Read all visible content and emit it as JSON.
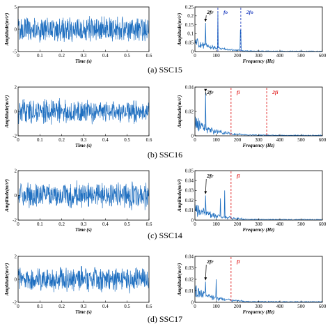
{
  "chart_data": [
    {
      "type": "line",
      "caption": "(a) SSC15",
      "time_panel": {
        "xlabel": "Time (s)",
        "ylabel": "Amplitude(m/s²)",
        "xlim": [
          0,
          0.65
        ],
        "ylim": [
          -5,
          5
        ],
        "xticks": [
          "0",
          "0.1",
          "0.2",
          "0.3",
          "0.4",
          "0.5",
          "0.6"
        ],
        "yticks": [
          "5",
          "0",
          "-5"
        ],
        "series": [
          {
            "color": "#1f6fc0",
            "amplitude": 3.2,
            "profile": "uniform"
          }
        ]
      },
      "spectrum_panel": {
        "xlabel": "Frequency (Hz)",
        "ylabel": "Amplitude(m/s²)",
        "xlim": [
          0,
          600
        ],
        "ylim": [
          0,
          0.25
        ],
        "xticks": [
          "0",
          "100",
          "200",
          "300",
          "400",
          "500",
          "600"
        ],
        "yticks": [
          "0.25",
          "0.2",
          "0.15",
          "0.1",
          "0.05",
          "0"
        ],
        "base": 0.02,
        "decay": 0.045,
        "noise": 0.022,
        "peaks": [
          {
            "f": 50,
            "a": 0.16
          },
          {
            "f": 108,
            "a": 0.22
          },
          {
            "f": 215,
            "a": 0.12
          }
        ],
        "markers": [
          {
            "label": "fo",
            "f": 108,
            "color": "#2040c0"
          },
          {
            "label": "2fo",
            "f": 216,
            "color": "#2040c0"
          }
        ],
        "arrows": [
          {
            "label": "2fr",
            "f": 50,
            "a": 0.16
          }
        ]
      }
    },
    {
      "type": "line",
      "caption": "(b) SSC16",
      "time_panel": {
        "xlabel": "Time (s)",
        "ylabel": "Amplitude(m/s²)",
        "xlim": [
          0,
          0.65
        ],
        "ylim": [
          -2,
          2
        ],
        "xticks": [
          "0",
          "0.1",
          "0.2",
          "0.3",
          "0.4",
          "0.5",
          "0.6"
        ],
        "yticks": [
          "2",
          "0",
          "-2"
        ],
        "series": [
          {
            "color": "#1f6fc0",
            "amplitude": 1.2,
            "profile": "bursty"
          }
        ]
      },
      "spectrum_panel": {
        "xlabel": "Frequency (Hz)",
        "ylabel": "Amplitude(m/s²)",
        "xlim": [
          0,
          600
        ],
        "ylim": [
          0,
          0.04
        ],
        "xticks": [
          "0",
          "100",
          "200",
          "300",
          "400",
          "500",
          "600"
        ],
        "yticks": [
          "0.04",
          "0.02",
          "0"
        ],
        "base": 0.002,
        "decay": 0.009,
        "noise": 0.006,
        "peaks": [
          {
            "f": 50,
            "a": 0.035
          }
        ],
        "markers": [
          {
            "label": "fi",
            "f": 170,
            "color": "#e02020"
          },
          {
            "label": "2fi",
            "f": 338,
            "color": "#e02020"
          }
        ],
        "arrows": [
          {
            "label": "2fr",
            "f": 50,
            "a": 0.035
          }
        ]
      }
    },
    {
      "type": "line",
      "caption": "(c) SSC14",
      "time_panel": {
        "xlabel": "Time (s)",
        "ylabel": "Amplitude(m/s²)",
        "xlim": [
          0,
          0.65
        ],
        "ylim": [
          -2,
          2
        ],
        "xticks": [
          "0",
          "0.1",
          "0.2",
          "0.3",
          "0.4",
          "0.5",
          "0.6"
        ],
        "yticks": [
          "2",
          "0",
          "-2"
        ],
        "series": [
          {
            "color": "#1f6fc0",
            "amplitude": 1.3,
            "profile": "bursty"
          }
        ]
      },
      "spectrum_panel": {
        "xlabel": "Frequency (Hz)",
        "ylabel": "Amplitude(m/s²)",
        "xlim": [
          0,
          600
        ],
        "ylim": [
          0,
          0.05
        ],
        "xticks": [
          "0",
          "100",
          "200",
          "300",
          "400",
          "500",
          "600"
        ],
        "yticks": [
          "0.05",
          "0.04",
          "0.03",
          "0.02",
          "0.01",
          "0"
        ],
        "base": 0.002,
        "decay": 0.012,
        "noise": 0.006,
        "peaks": [
          {
            "f": 50,
            "a": 0.025
          },
          {
            "f": 140,
            "a": 0.03
          },
          {
            "f": 120,
            "a": 0.022
          }
        ],
        "markers": [
          {
            "label": "fi",
            "f": 170,
            "color": "#e02020"
          }
        ],
        "arrows": [
          {
            "label": "2fr",
            "f": 50,
            "a": 0.025
          }
        ]
      }
    },
    {
      "type": "line",
      "caption": "(d) SSC17",
      "time_panel": {
        "xlabel": "Time (s)",
        "ylabel": "Amplitude(m/s²)",
        "xlim": [
          0,
          0.65
        ],
        "ylim": [
          -2,
          2
        ],
        "xticks": [
          "0",
          "0.1",
          "0.2",
          "0.3",
          "0.4",
          "0.5",
          "0.6"
        ],
        "yticks": [
          "2",
          "0",
          "-2"
        ],
        "series": [
          {
            "color": "#1f6fc0",
            "amplitude": 1.3,
            "profile": "bursty"
          }
        ]
      },
      "spectrum_panel": {
        "xlabel": "Frequency (Hz)",
        "ylabel": "Amplitude(m/s²)",
        "xlim": [
          0,
          600
        ],
        "ylim": [
          0,
          0.04
        ],
        "xticks": [
          "0",
          "100",
          "200",
          "300",
          "400",
          "500",
          "600"
        ],
        "yticks": [
          "0.04",
          "0.03",
          "0.02",
          "0.01",
          "0"
        ],
        "base": 0.002,
        "decay": 0.01,
        "noise": 0.005,
        "peaks": [
          {
            "f": 50,
            "a": 0.018
          },
          {
            "f": 100,
            "a": 0.02
          }
        ],
        "markers": [
          {
            "label": "fi",
            "f": 170,
            "color": "#e02020"
          }
        ],
        "arrows": [
          {
            "label": "2fr",
            "f": 50,
            "a": 0.018
          }
        ]
      }
    }
  ]
}
